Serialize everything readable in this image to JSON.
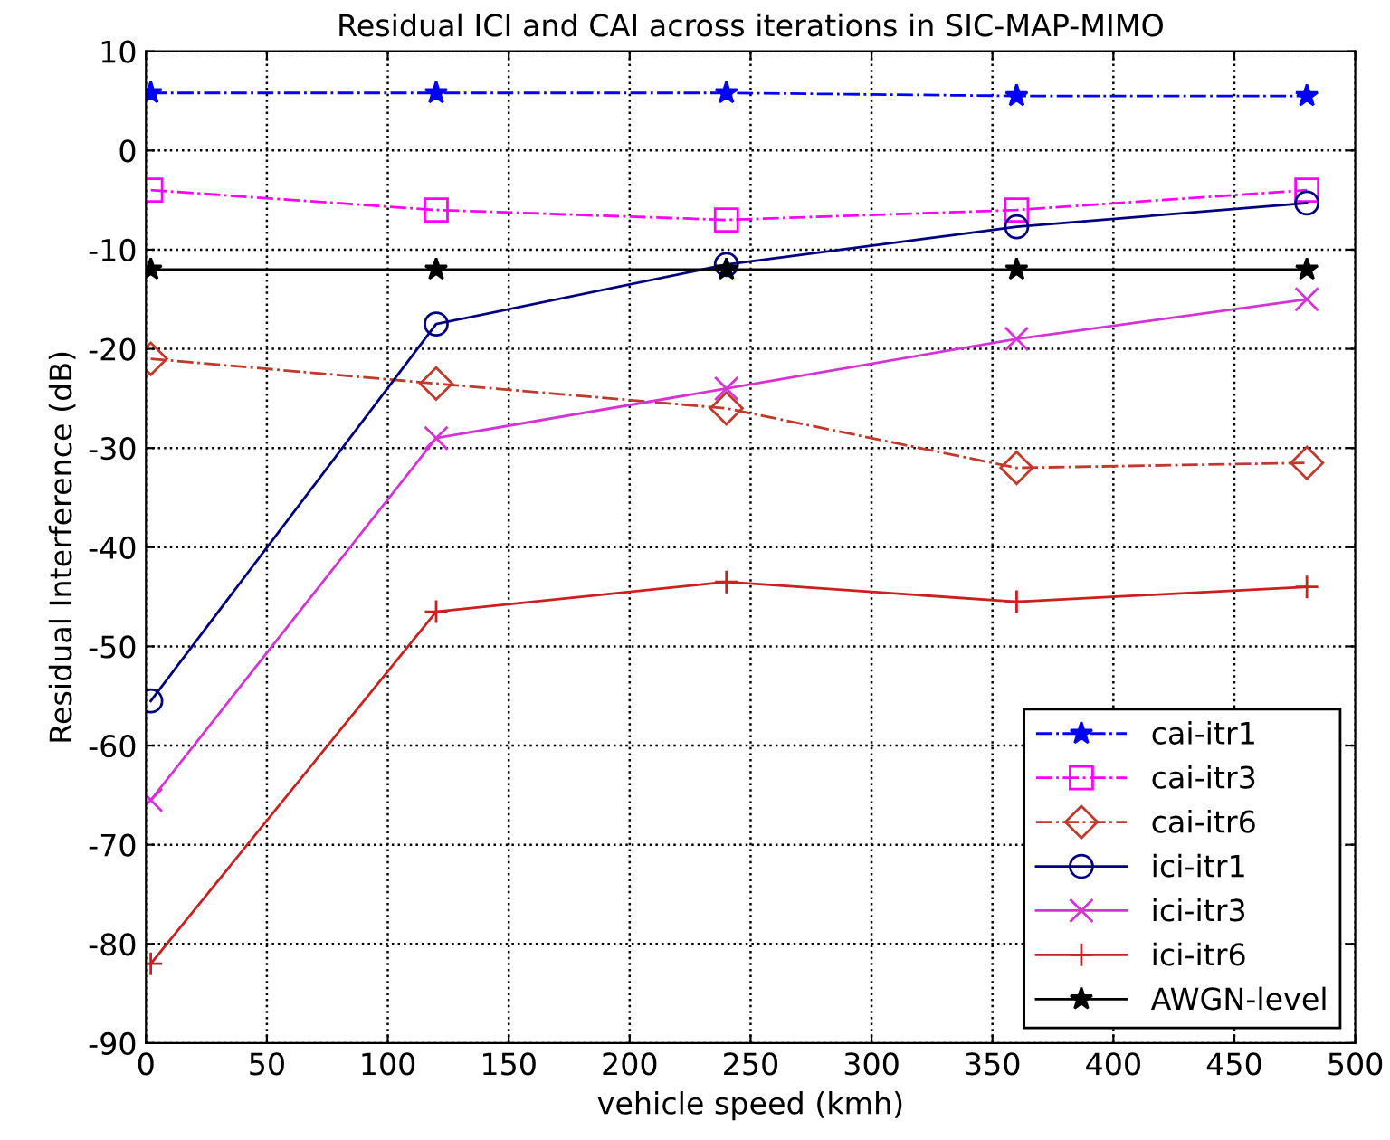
{
  "chart_data": {
    "type": "line",
    "title": "Residual ICI and CAI across iterations in SIC-MAP-MIMO",
    "xlabel": "vehicle speed (kmh)",
    "ylabel": "Residual Interference (dB)",
    "x": [
      2,
      120,
      240,
      360,
      480
    ],
    "series": [
      {
        "name": "cai-itr1",
        "color": "#0000ff",
        "marker": "star",
        "line_style": "dashdot",
        "values": [
          5.8,
          5.8,
          5.8,
          5.5,
          5.5
        ]
      },
      {
        "name": "cai-itr3",
        "color": "#ff00ff",
        "marker": "square",
        "line_style": "dashdot",
        "values": [
          -4,
          -6,
          -7,
          -6,
          -4
        ]
      },
      {
        "name": "cai-itr6",
        "color": "#c0392b",
        "marker": "diamond",
        "line_style": "dashdot",
        "values": [
          -21,
          -23.5,
          -26,
          -32,
          -31.5
        ]
      },
      {
        "name": "ici-itr1",
        "color": "#000080",
        "marker": "circle",
        "line_style": "solid",
        "values": [
          -55.5,
          -17.5,
          -11.5,
          -7.7,
          -5.3
        ]
      },
      {
        "name": "ici-itr3",
        "color": "#d633d6",
        "marker": "cross",
        "line_style": "solid",
        "values": [
          -65.5,
          -29,
          -24,
          -19,
          -15
        ]
      },
      {
        "name": "ici-itr6",
        "color": "#cc1f1f",
        "marker": "plus",
        "line_style": "solid",
        "values": [
          -82,
          -46.5,
          -43.5,
          -45.5,
          -44
        ]
      },
      {
        "name": "AWGN-level",
        "color": "#000000",
        "marker": "star",
        "line_style": "solid",
        "values": [
          -12,
          -12,
          -12,
          -12,
          -12
        ]
      }
    ],
    "xlim": [
      0,
      500
    ],
    "xticks": [
      0,
      50,
      100,
      150,
      200,
      250,
      300,
      350,
      400,
      450,
      500
    ],
    "ylim": [
      -90,
      10
    ],
    "yticks": [
      -90,
      -80,
      -70,
      -60,
      -50,
      -40,
      -30,
      -20,
      -10,
      0,
      10
    ],
    "grid": true,
    "legend": "bottom right"
  }
}
